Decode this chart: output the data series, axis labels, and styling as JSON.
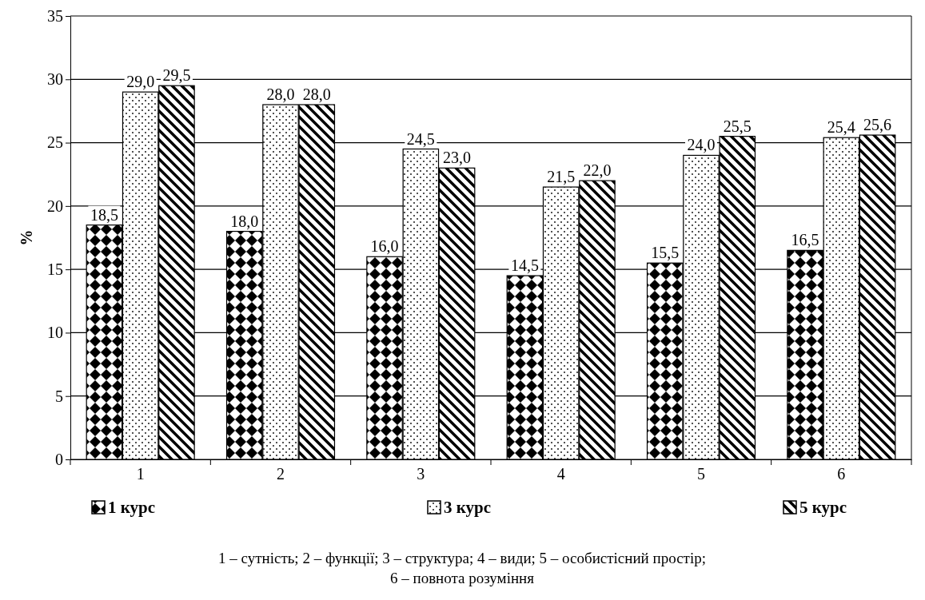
{
  "chart_data": {
    "type": "bar",
    "ylabel": "%",
    "categories": [
      "1",
      "2",
      "3",
      "4",
      "5",
      "6"
    ],
    "series": [
      {
        "name": "1 курс",
        "color": "#000000",
        "values": [
          18.5,
          18.0,
          16.0,
          14.5,
          15.5,
          16.5
        ],
        "value_labels": [
          "18,5",
          "18,0",
          "16,0",
          "14,5",
          "15,5",
          "16,5"
        ]
      },
      {
        "name": "3 курс",
        "color": "#000000",
        "values": [
          29.0,
          28.0,
          24.5,
          21.5,
          24.0,
          25.4
        ],
        "value_labels": [
          "29,0",
          "28,0",
          "24,5",
          "21,5",
          "24,0",
          "25,4"
        ]
      },
      {
        "name": "5 курс",
        "color": "#000000",
        "values": [
          29.5,
          28.0,
          23.0,
          22.0,
          25.5,
          25.6
        ],
        "value_labels": [
          "29,5",
          "28,0",
          "23,0",
          "22,0",
          "25,5",
          "25,6"
        ]
      }
    ],
    "ylim": [
      0,
      35
    ],
    "yticks": [
      0,
      5,
      10,
      15,
      20,
      25,
      30,
      35
    ],
    "grid": "y",
    "legend": "bottom",
    "annotations": [
      "1 – сутність; 2 – функції; 3 – структура; 4 – види; 5 – особистісний простір;",
      "6 – повнота розуміння"
    ]
  }
}
